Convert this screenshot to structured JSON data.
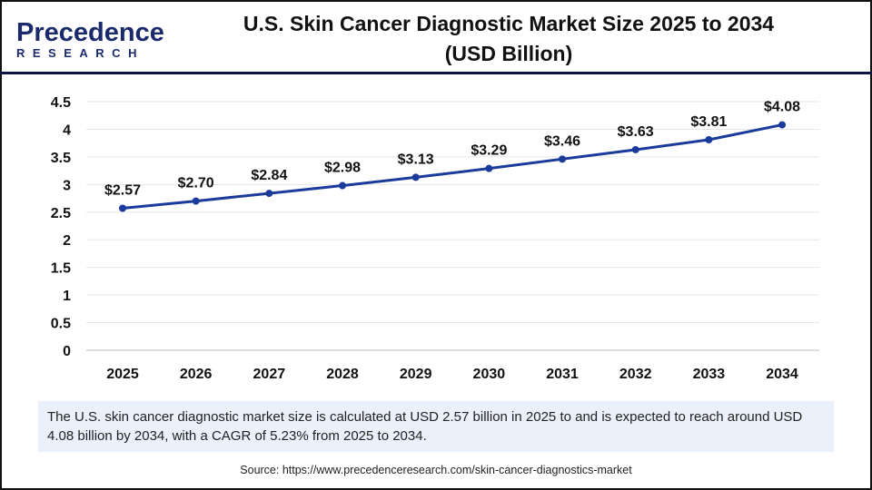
{
  "brand": {
    "line1": "Precedence",
    "line2": "RESEARCH"
  },
  "title": "U.S. Skin Cancer Diagnostic Market Size 2025 to 2034 (USD Billion)",
  "summary": "The U.S. skin cancer diagnostic market size is calculated at USD 2.57 billion in 2025 to and is expected to reach around USD 4.08 billion by 2034, with a CAGR of 5.23% from 2025 to 2034.",
  "source": "Source: https://www.precedenceresearch.com/skin-cancer-diagnostics-market",
  "chart_data": {
    "type": "line",
    "title": "U.S. Skin Cancer Diagnostic Market Size 2025 to 2034 (USD Billion)",
    "categories": [
      "2025",
      "2026",
      "2027",
      "2028",
      "2029",
      "2030",
      "2031",
      "2032",
      "2033",
      "2034"
    ],
    "values": [
      2.57,
      2.7,
      2.84,
      2.98,
      3.13,
      3.29,
      3.46,
      3.63,
      3.81,
      4.08
    ],
    "data_labels": [
      "$2.57",
      "$2.70",
      "$2.84",
      "$2.98",
      "$3.13",
      "$3.29",
      "$3.46",
      "$3.63",
      "$3.81",
      "$4.08"
    ],
    "yticks": [
      "0",
      "0.5",
      "1",
      "1.5",
      "2",
      "2.5",
      "3",
      "3.5",
      "4",
      "4.5"
    ],
    "ylim": [
      0,
      4.5
    ],
    "grid": true,
    "line_color": "#1a3b9c"
  }
}
